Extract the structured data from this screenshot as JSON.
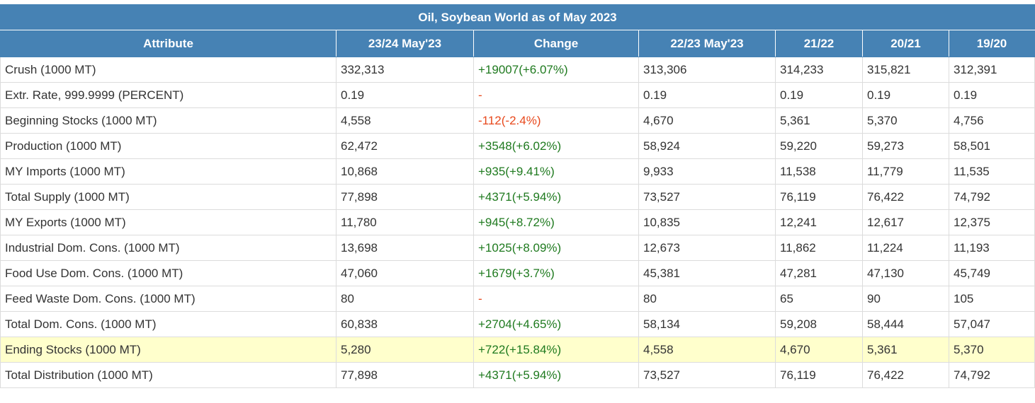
{
  "title": "Oil, Soybean World as of May 2023",
  "headers": [
    "Attribute",
    "23/24 May'23",
    "Change",
    "22/23 May'23",
    "21/22",
    "20/21",
    "19/20"
  ],
  "rows": [
    {
      "attribute": "Crush (1000 MT)",
      "c2324": "332,313",
      "change": "+19007(+6.07%)",
      "change_status": "pos",
      "c2223": "313,306",
      "c2122": "314,233",
      "c2021": "315,821",
      "c1920": "312,391"
    },
    {
      "attribute": "Extr. Rate, 999.9999 (PERCENT)",
      "c2324": "0.19",
      "change": "-",
      "change_status": "neg",
      "c2223": "0.19",
      "c2122": "0.19",
      "c2021": "0.19",
      "c1920": "0.19"
    },
    {
      "attribute": "Beginning Stocks (1000 MT)",
      "c2324": "4,558",
      "change": "-112(-2.4%)",
      "change_status": "neg",
      "c2223": "4,670",
      "c2122": "5,361",
      "c2021": "5,370",
      "c1920": "4,756"
    },
    {
      "attribute": "Production (1000 MT)",
      "c2324": "62,472",
      "change": "+3548(+6.02%)",
      "change_status": "pos",
      "c2223": "58,924",
      "c2122": "59,220",
      "c2021": "59,273",
      "c1920": "58,501"
    },
    {
      "attribute": "MY Imports (1000 MT)",
      "c2324": "10,868",
      "change": "+935(+9.41%)",
      "change_status": "pos",
      "c2223": "9,933",
      "c2122": "11,538",
      "c2021": "11,779",
      "c1920": "11,535"
    },
    {
      "attribute": "Total Supply (1000 MT)",
      "c2324": "77,898",
      "change": "+4371(+5.94%)",
      "change_status": "pos",
      "c2223": "73,527",
      "c2122": "76,119",
      "c2021": "76,422",
      "c1920": "74,792"
    },
    {
      "attribute": "MY Exports (1000 MT)",
      "c2324": "11,780",
      "change": "+945(+8.72%)",
      "change_status": "pos",
      "c2223": "10,835",
      "c2122": "12,241",
      "c2021": "12,617",
      "c1920": "12,375"
    },
    {
      "attribute": "Industrial Dom. Cons. (1000 MT)",
      "c2324": "13,698",
      "change": "+1025(+8.09%)",
      "change_status": "pos",
      "c2223": "12,673",
      "c2122": "11,862",
      "c2021": "11,224",
      "c1920": "11,193"
    },
    {
      "attribute": "Food Use Dom. Cons. (1000 MT)",
      "c2324": "47,060",
      "change": "+1679(+3.7%)",
      "change_status": "pos",
      "c2223": "45,381",
      "c2122": "47,281",
      "c2021": "47,130",
      "c1920": "45,749"
    },
    {
      "attribute": "Feed Waste Dom. Cons. (1000 MT)",
      "c2324": "80",
      "change": "-",
      "change_status": "neg",
      "c2223": "80",
      "c2122": "65",
      "c2021": "90",
      "c1920": "105"
    },
    {
      "attribute": "Total Dom. Cons. (1000 MT)",
      "c2324": "60,838",
      "change": "+2704(+4.65%)",
      "change_status": "pos",
      "c2223": "58,134",
      "c2122": "59,208",
      "c2021": "58,444",
      "c1920": "57,047"
    },
    {
      "attribute": "Ending Stocks (1000 MT)",
      "c2324": "5,280",
      "change": "+722(+15.84%)",
      "change_status": "pos",
      "c2223": "4,558",
      "c2122": "4,670",
      "c2021": "5,361",
      "c1920": "5,370",
      "highlighted": true
    },
    {
      "attribute": "Total Distribution (1000 MT)",
      "c2324": "77,898",
      "change": "+4371(+5.94%)",
      "change_status": "pos",
      "c2223": "73,527",
      "c2122": "76,119",
      "c2021": "76,422",
      "c1920": "74,792"
    }
  ],
  "colors": {
    "header_bg": "#4682b4",
    "positive": "#1f7a1f",
    "negative": "#e8491d",
    "highlight_row": "#ffffcc"
  }
}
